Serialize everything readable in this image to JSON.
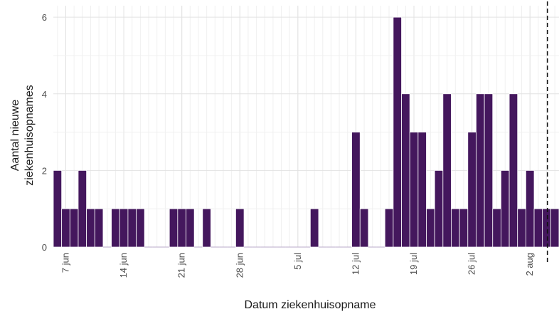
{
  "chart_data": {
    "type": "bar",
    "title": "",
    "xlabel": "Datum ziekenhuisopname",
    "ylabel_lines": [
      "Aantal nieuwe",
      "ziekenhuisopnames"
    ],
    "x_start": "2020-06-06",
    "x_end": "2020-08-05",
    "ylim": [
      0,
      6.3
    ],
    "y_ticks": [
      0,
      2,
      4,
      6
    ],
    "x_tick_labels": [
      "7 jun",
      "14 jun",
      "21 jun",
      "28 jun",
      "5 jul",
      "12 jul",
      "19 jul",
      "26 jul",
      "2 aug"
    ],
    "x_tick_dates": [
      "2020-06-07",
      "2020-06-14",
      "2020-06-21",
      "2020-06-28",
      "2020-07-05",
      "2020-07-12",
      "2020-07-19",
      "2020-07-26",
      "2020-08-02"
    ],
    "dates": [
      "2020-06-06",
      "2020-06-07",
      "2020-06-08",
      "2020-06-09",
      "2020-06-10",
      "2020-06-11",
      "2020-06-12",
      "2020-06-13",
      "2020-06-14",
      "2020-06-15",
      "2020-06-16",
      "2020-06-17",
      "2020-06-18",
      "2020-06-19",
      "2020-06-20",
      "2020-06-21",
      "2020-06-22",
      "2020-06-23",
      "2020-06-24",
      "2020-06-25",
      "2020-06-26",
      "2020-06-27",
      "2020-06-28",
      "2020-06-29",
      "2020-06-30",
      "2020-07-01",
      "2020-07-02",
      "2020-07-03",
      "2020-07-04",
      "2020-07-05",
      "2020-07-06",
      "2020-07-07",
      "2020-07-08",
      "2020-07-09",
      "2020-07-10",
      "2020-07-11",
      "2020-07-12",
      "2020-07-13",
      "2020-07-14",
      "2020-07-15",
      "2020-07-16",
      "2020-07-17",
      "2020-07-18",
      "2020-07-19",
      "2020-07-20",
      "2020-07-21",
      "2020-07-22",
      "2020-07-23",
      "2020-07-24",
      "2020-07-25",
      "2020-07-26",
      "2020-07-27",
      "2020-07-28",
      "2020-07-29",
      "2020-07-30",
      "2020-07-31",
      "2020-08-01",
      "2020-08-02",
      "2020-08-03",
      "2020-08-04",
      "2020-08-05"
    ],
    "values": [
      2,
      1,
      1,
      2,
      1,
      1,
      0,
      1,
      1,
      1,
      1,
      0,
      0,
      0,
      1,
      1,
      1,
      0,
      1,
      0,
      0,
      0,
      1,
      0,
      0,
      0,
      0,
      0,
      0,
      0,
      0,
      1,
      0,
      0,
      0,
      0,
      3,
      1,
      0,
      0,
      1,
      6,
      4,
      3,
      3,
      1,
      2,
      4,
      1,
      1,
      3,
      4,
      4,
      1,
      2,
      4,
      1,
      2,
      1,
      1,
      1
    ],
    "bar_color": "#44175d",
    "reference_line_date": "2020-08-04",
    "grid": true,
    "legend": "none"
  }
}
